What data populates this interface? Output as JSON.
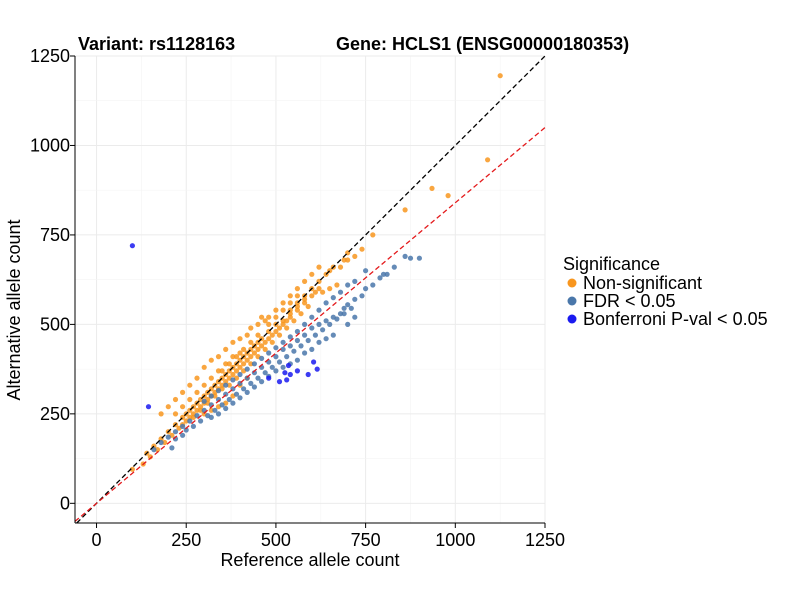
{
  "chart_data": {
    "type": "scatter",
    "title_left": "Variant: rs1128163",
    "title_right": "Gene: HCLS1 (ENSG00000180353)",
    "xlabel": "Reference allele count",
    "ylabel": "Alternative allele count",
    "xlim": [
      -60,
      1250
    ],
    "ylim": [
      -55,
      1250
    ],
    "x_ticks": [
      0,
      250,
      500,
      750,
      1000,
      1250
    ],
    "y_ticks": [
      0,
      250,
      500,
      750,
      1000,
      1250
    ],
    "grid": true,
    "legend": {
      "title": "Significance",
      "position": "right",
      "entries": [
        {
          "label": "Non-significant",
          "color": "#F8961E"
        },
        {
          "label": "FDR < 0.05",
          "color": "#4A77AA"
        },
        {
          "label": "Bonferroni P-val < 0.05",
          "color": "#1A1AF0"
        }
      ]
    },
    "reference_lines": [
      {
        "name": "identity",
        "slope": 1.0,
        "intercept": 0,
        "color": "#000000",
        "style": "dashed"
      },
      {
        "name": "fit",
        "slope": 0.84,
        "intercept": 0,
        "color": "#E41A1C",
        "style": "dashed"
      }
    ],
    "series": [
      {
        "name": "Non-significant",
        "color": "#F8961E",
        "points": [
          [
            1125,
            1195
          ],
          [
            1090,
            960
          ],
          [
            935,
            880
          ],
          [
            980,
            860
          ],
          [
            860,
            820
          ],
          [
            770,
            750
          ],
          [
            700,
            700
          ],
          [
            690,
            680
          ],
          [
            660,
            660
          ],
          [
            640,
            640
          ],
          [
            620,
            620
          ],
          [
            700,
            680
          ],
          [
            720,
            690
          ],
          [
            740,
            710
          ],
          [
            680,
            660
          ],
          [
            650,
            650
          ],
          [
            600,
            600
          ],
          [
            580,
            580
          ],
          [
            560,
            560
          ],
          [
            540,
            540
          ],
          [
            620,
            600
          ],
          [
            610,
            590
          ],
          [
            580,
            570
          ],
          [
            560,
            550
          ],
          [
            540,
            530
          ],
          [
            520,
            510
          ],
          [
            500,
            500
          ],
          [
            480,
            480
          ],
          [
            460,
            460
          ],
          [
            440,
            440
          ],
          [
            420,
            420
          ],
          [
            400,
            400
          ],
          [
            380,
            380
          ],
          [
            360,
            360
          ],
          [
            340,
            340
          ],
          [
            320,
            320
          ],
          [
            300,
            300
          ],
          [
            280,
            280
          ],
          [
            260,
            260
          ],
          [
            240,
            240
          ],
          [
            220,
            220
          ],
          [
            200,
            200
          ],
          [
            180,
            180
          ],
          [
            160,
            160
          ],
          [
            140,
            140
          ],
          [
            100,
            95
          ],
          [
            130,
            110
          ],
          [
            150,
            130
          ],
          [
            170,
            150
          ],
          [
            190,
            170
          ],
          [
            210,
            190
          ],
          [
            230,
            210
          ],
          [
            250,
            230
          ],
          [
            270,
            250
          ],
          [
            290,
            270
          ],
          [
            310,
            290
          ],
          [
            330,
            310
          ],
          [
            350,
            330
          ],
          [
            370,
            350
          ],
          [
            390,
            370
          ],
          [
            410,
            390
          ],
          [
            430,
            410
          ],
          [
            450,
            430
          ],
          [
            470,
            450
          ],
          [
            490,
            470
          ],
          [
            510,
            490
          ],
          [
            530,
            510
          ],
          [
            460,
            520
          ],
          [
            470,
            510
          ],
          [
            450,
            500
          ],
          [
            430,
            490
          ],
          [
            420,
            470
          ],
          [
            400,
            460
          ],
          [
            380,
            450
          ],
          [
            360,
            430
          ],
          [
            340,
            410
          ],
          [
            320,
            400
          ],
          [
            300,
            380
          ],
          [
            280,
            350
          ],
          [
            260,
            330
          ],
          [
            240,
            310
          ],
          [
            220,
            290
          ],
          [
            200,
            270
          ],
          [
            180,
            250
          ],
          [
            400,
            420
          ],
          [
            380,
            410
          ],
          [
            360,
            390
          ],
          [
            340,
            370
          ],
          [
            320,
            350
          ],
          [
            300,
            330
          ],
          [
            280,
            310
          ],
          [
            260,
            290
          ],
          [
            240,
            270
          ],
          [
            220,
            250
          ],
          [
            350,
            350
          ],
          [
            330,
            330
          ],
          [
            310,
            310
          ],
          [
            290,
            290
          ],
          [
            270,
            270
          ],
          [
            250,
            250
          ],
          [
            370,
            370
          ],
          [
            390,
            390
          ],
          [
            410,
            410
          ],
          [
            430,
            430
          ],
          [
            450,
            450
          ],
          [
            420,
            400
          ],
          [
            400,
            380
          ],
          [
            380,
            360
          ],
          [
            360,
            340
          ],
          [
            340,
            320
          ],
          [
            320,
            300
          ],
          [
            300,
            280
          ],
          [
            280,
            260
          ],
          [
            260,
            240
          ],
          [
            240,
            220
          ],
          [
            440,
            420
          ],
          [
            460,
            440
          ],
          [
            480,
            460
          ],
          [
            500,
            480
          ],
          [
            520,
            500
          ],
          [
            540,
            520
          ],
          [
            560,
            540
          ],
          [
            580,
            560
          ],
          [
            600,
            580
          ],
          [
            480,
            500
          ],
          [
            500,
            520
          ],
          [
            520,
            540
          ],
          [
            540,
            560
          ],
          [
            560,
            580
          ],
          [
            350,
            320
          ],
          [
            330,
            300
          ],
          [
            310,
            280
          ],
          [
            290,
            260
          ],
          [
            270,
            240
          ],
          [
            450,
            470
          ],
          [
            430,
            450
          ],
          [
            410,
            430
          ],
          [
            390,
            410
          ],
          [
            370,
            390
          ],
          [
            350,
            370
          ],
          [
            650,
            600
          ],
          [
            630,
            590
          ],
          [
            670,
            610
          ],
          [
            590,
            550
          ],
          [
            570,
            530
          ],
          [
            550,
            510
          ],
          [
            530,
            490
          ],
          [
            510,
            470
          ],
          [
            490,
            450
          ],
          [
            470,
            430
          ],
          [
            450,
            410
          ],
          [
            430,
            390
          ],
          [
            410,
            370
          ],
          [
            390,
            350
          ],
          [
            370,
            330
          ],
          [
            600,
            640
          ],
          [
            620,
            660
          ],
          [
            580,
            620
          ],
          [
            560,
            600
          ],
          [
            540,
            580
          ],
          [
            520,
            560
          ],
          [
            500,
            540
          ],
          [
            480,
            520
          ],
          [
            380,
            300
          ],
          [
            360,
            280
          ],
          [
            340,
            270
          ],
          [
            320,
            260
          ],
          [
            300,
            250
          ],
          [
            420,
            350
          ],
          [
            400,
            330
          ]
        ]
      },
      {
        "name": "FDR < 0.05",
        "color": "#4A77AA",
        "points": [
          [
            900,
            685
          ],
          [
            875,
            685
          ],
          [
            860,
            690
          ],
          [
            830,
            660
          ],
          [
            810,
            640
          ],
          [
            790,
            630
          ],
          [
            770,
            610
          ],
          [
            750,
            600
          ],
          [
            740,
            580
          ],
          [
            720,
            570
          ],
          [
            700,
            555
          ],
          [
            690,
            545
          ],
          [
            680,
            530
          ],
          [
            660,
            520
          ],
          [
            640,
            510
          ],
          [
            620,
            500
          ],
          [
            600,
            490
          ],
          [
            580,
            470
          ],
          [
            560,
            455
          ],
          [
            540,
            440
          ],
          [
            520,
            430
          ],
          [
            500,
            410
          ],
          [
            480,
            395
          ],
          [
            460,
            380
          ],
          [
            440,
            365
          ],
          [
            420,
            350
          ],
          [
            400,
            335
          ],
          [
            380,
            320
          ],
          [
            360,
            305
          ],
          [
            340,
            290
          ],
          [
            320,
            275
          ],
          [
            300,
            260
          ],
          [
            280,
            245
          ],
          [
            260,
            230
          ],
          [
            240,
            215
          ],
          [
            220,
            200
          ],
          [
            200,
            185
          ],
          [
            180,
            170
          ],
          [
            160,
            150
          ],
          [
            210,
            155
          ],
          [
            220,
            180
          ],
          [
            240,
            190
          ],
          [
            250,
            205
          ],
          [
            270,
            215
          ],
          [
            290,
            230
          ],
          [
            310,
            245
          ],
          [
            330,
            260
          ],
          [
            350,
            275
          ],
          [
            370,
            290
          ],
          [
            390,
            305
          ],
          [
            410,
            320
          ],
          [
            430,
            335
          ],
          [
            450,
            350
          ],
          [
            470,
            365
          ],
          [
            490,
            380
          ],
          [
            510,
            395
          ],
          [
            530,
            410
          ],
          [
            550,
            425
          ],
          [
            570,
            440
          ],
          [
            590,
            455
          ],
          [
            610,
            470
          ],
          [
            630,
            485
          ],
          [
            650,
            500
          ],
          [
            670,
            515
          ],
          [
            690,
            530
          ],
          [
            710,
            545
          ],
          [
            600,
            520
          ],
          [
            580,
            500
          ],
          [
            560,
            480
          ],
          [
            540,
            465
          ],
          [
            520,
            450
          ],
          [
            500,
            435
          ],
          [
            480,
            420
          ],
          [
            460,
            405
          ],
          [
            440,
            390
          ],
          [
            420,
            375
          ],
          [
            400,
            360
          ],
          [
            380,
            345
          ],
          [
            360,
            330
          ],
          [
            340,
            315
          ],
          [
            320,
            300
          ],
          [
            300,
            285
          ],
          [
            620,
            540
          ],
          [
            640,
            560
          ],
          [
            660,
            575
          ],
          [
            680,
            590
          ],
          [
            700,
            610
          ],
          [
            720,
            620
          ],
          [
            750,
            650
          ],
          [
            800,
            640
          ],
          [
            620,
            450
          ],
          [
            600,
            430
          ],
          [
            580,
            420
          ],
          [
            560,
            400
          ],
          [
            540,
            390
          ],
          [
            520,
            380
          ],
          [
            500,
            370
          ],
          [
            480,
            355
          ],
          [
            460,
            340
          ],
          [
            440,
            325
          ],
          [
            420,
            310
          ],
          [
            400,
            295
          ],
          [
            380,
            280
          ],
          [
            360,
            265
          ],
          [
            340,
            250
          ],
          [
            320,
            240
          ],
          [
            660,
            470
          ],
          [
            640,
            460
          ],
          [
            700,
            500
          ],
          [
            720,
            520
          ]
        ]
      },
      {
        "name": "Bonferroni P-val < 0.05",
        "color": "#1A1AF0",
        "points": [
          [
            100,
            720
          ],
          [
            145,
            270
          ],
          [
            535,
            385
          ],
          [
            560,
            370
          ],
          [
            590,
            360
          ],
          [
            605,
            395
          ],
          [
            615,
            375
          ],
          [
            530,
            345
          ],
          [
            540,
            360
          ],
          [
            510,
            340
          ],
          [
            480,
            350
          ],
          [
            525,
            365
          ]
        ]
      }
    ]
  }
}
